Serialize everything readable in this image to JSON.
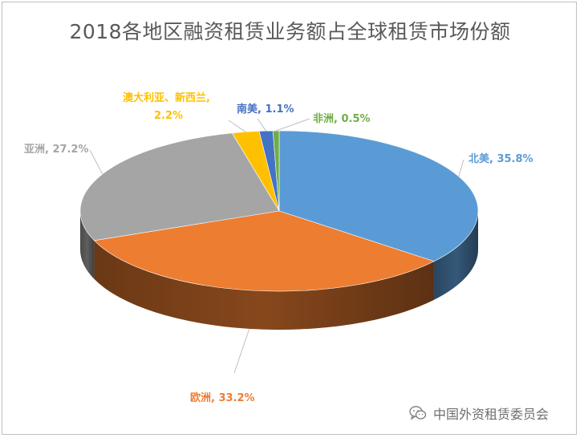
{
  "chart_data": {
    "type": "pie",
    "title": "2018各地区融资租赁业务额占全球租赁市场份额",
    "slices": [
      {
        "name": "北美",
        "value": 35.8,
        "label": "北美, 35.8%",
        "color": "#5b9bd5"
      },
      {
        "name": "欧洲",
        "value": 33.2,
        "label": "欧洲, 33.2%",
        "color": "#ed7d31"
      },
      {
        "name": "亚洲",
        "value": 27.2,
        "label": "亚洲, 27.2%",
        "color": "#a5a5a5"
      },
      {
        "name": "澳大利亚、新西兰",
        "value": 2.2,
        "label_line1": "澳大利亚、新西兰,",
        "label_line2": "2.2%",
        "color": "#ffc000"
      },
      {
        "name": "南美",
        "value": 1.1,
        "label": "南美, 1.1%",
        "color": "#4472c4"
      },
      {
        "name": "非洲",
        "value": 0.5,
        "label": "非洲, 0.5%",
        "color": "#70ad47"
      }
    ],
    "legend": "none"
  },
  "watermark": {
    "text": "中国外资租赁委员会",
    "icon": "wechat-icon"
  }
}
